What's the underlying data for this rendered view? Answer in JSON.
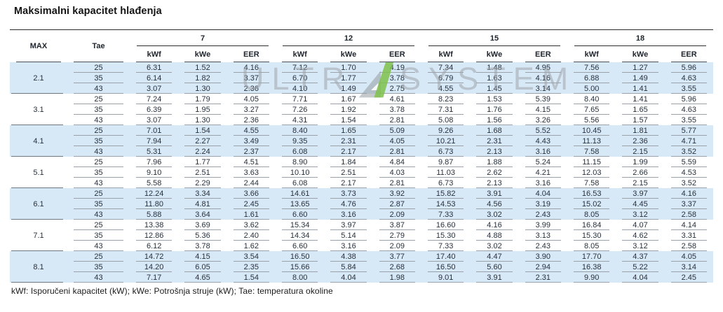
{
  "title": "Maksimalni kapacitet hlađenja",
  "footer_note": "kWf: Isporučeni kapacitet (kW); kWe: Potrošnja struje (kW); Tae: temperatura okoline",
  "watermark": {
    "left": "ULTR",
    "right": "SYSTEM"
  },
  "colors": {
    "row_shade": "#d7e8f6",
    "watermark_gray": "#9ea4ab",
    "watermark_green": "#7ec14b"
  },
  "table": {
    "col_max_header": "MAX",
    "col_tae_header": "Tae",
    "groups": [
      "7",
      "12",
      "15",
      "18"
    ],
    "sub_headers": [
      "kWf",
      "kWe",
      "EER"
    ],
    "row_groups": [
      {
        "max": "2.1",
        "shaded": true,
        "rows": [
          {
            "tae": "25",
            "values": [
              "6.31",
              "1.52",
              "4.16",
              "7.12",
              "1.70",
              "4.19",
              "7.34",
              "1.48",
              "4.95",
              "7.56",
              "1.27",
              "5.96"
            ]
          },
          {
            "tae": "35",
            "values": [
              "6.14",
              "1.82",
              "3.37",
              "6.70",
              "1.77",
              "3.78",
              "6.79",
              "1.63",
              "4.16",
              "6.88",
              "1.49",
              "4.63"
            ]
          },
          {
            "tae": "43",
            "values": [
              "3.07",
              "1.30",
              "2.36",
              "4.10",
              "1.49",
              "2.75",
              "4.55",
              "1.45",
              "3.14",
              "5.00",
              "1.41",
              "3.55"
            ]
          }
        ]
      },
      {
        "max": "3.1",
        "shaded": false,
        "rows": [
          {
            "tae": "25",
            "values": [
              "7.24",
              "1.79",
              "4.05",
              "7.71",
              "1.67",
              "4.61",
              "8.23",
              "1.53",
              "5.39",
              "8.40",
              "1.41",
              "5.96"
            ]
          },
          {
            "tae": "35",
            "values": [
              "6.39",
              "1.95",
              "3.27",
              "7.26",
              "1.92",
              "3.78",
              "7.31",
              "1.76",
              "4.15",
              "7.65",
              "1.65",
              "4.63"
            ]
          },
          {
            "tae": "43",
            "values": [
              "3.07",
              "1.30",
              "2.36",
              "4.31",
              "1.54",
              "2.81",
              "5.08",
              "1.56",
              "3.26",
              "5.56",
              "1.57",
              "3.55"
            ]
          }
        ]
      },
      {
        "max": "4.1",
        "shaded": true,
        "rows": [
          {
            "tae": "25",
            "values": [
              "7.01",
              "1.54",
              "4.55",
              "8.40",
              "1.65",
              "5.09",
              "9.26",
              "1.68",
              "5.52",
              "10.45",
              "1.81",
              "5.77"
            ]
          },
          {
            "tae": "35",
            "values": [
              "7.94",
              "2.27",
              "3.49",
              "9.35",
              "2.31",
              "4.05",
              "10.21",
              "2.31",
              "4.43",
              "11.13",
              "2.36",
              "4.71"
            ]
          },
          {
            "tae": "43",
            "values": [
              "5.31",
              "2.24",
              "2.37",
              "6.08",
              "2.17",
              "2.81",
              "6.73",
              "2.13",
              "3.16",
              "7.58",
              "2.15",
              "3.52"
            ]
          }
        ]
      },
      {
        "max": "5.1",
        "shaded": false,
        "rows": [
          {
            "tae": "25",
            "values": [
              "7.96",
              "1.77",
              "4.51",
              "8.90",
              "1.84",
              "4.84",
              "9.87",
              "1.88",
              "5.24",
              "11.15",
              "1.99",
              "5.59"
            ]
          },
          {
            "tae": "35",
            "values": [
              "9.10",
              "2.51",
              "3.63",
              "10.10",
              "2.51",
              "4.03",
              "11.03",
              "2.62",
              "4.21",
              "12.03",
              "2.66",
              "4.53"
            ]
          },
          {
            "tae": "43",
            "values": [
              "5.58",
              "2.29",
              "2.44",
              "6.08",
              "2.17",
              "2.81",
              "6.73",
              "2.13",
              "3.16",
              "7.58",
              "2.15",
              "3.52"
            ]
          }
        ]
      },
      {
        "max": "6.1",
        "shaded": true,
        "rows": [
          {
            "tae": "25",
            "values": [
              "12.24",
              "3.34",
              "3.66",
              "14.61",
              "3.73",
              "3.92",
              "15.82",
              "3.91",
              "4.04",
              "16.53",
              "3.97",
              "4.16"
            ]
          },
          {
            "tae": "35",
            "values": [
              "11.80",
              "4.81",
              "2.45",
              "13.65",
              "4.76",
              "2.87",
              "14.53",
              "4.56",
              "3.19",
              "15.02",
              "4.45",
              "3.37"
            ]
          },
          {
            "tae": "43",
            "values": [
              "5.88",
              "3.64",
              "1.61",
              "6.60",
              "3.16",
              "2.09",
              "7.33",
              "3.02",
              "2.43",
              "8.05",
              "3.12",
              "2.58"
            ]
          }
        ]
      },
      {
        "max": "7.1",
        "shaded": false,
        "rows": [
          {
            "tae": "25",
            "values": [
              "13.38",
              "3.69",
              "3.62",
              "15.34",
              "3.97",
              "3.87",
              "16.60",
              "4.16",
              "3.99",
              "16.84",
              "4.07",
              "4.14"
            ]
          },
          {
            "tae": "35",
            "values": [
              "12.86",
              "5.36",
              "2.40",
              "14.34",
              "5.14",
              "2.79",
              "15.30",
              "4.88",
              "3.13",
              "15.30",
              "4.62",
              "3.31"
            ]
          },
          {
            "tae": "43",
            "values": [
              "6.12",
              "3.78",
              "1.62",
              "6.60",
              "3.16",
              "2.09",
              "7.33",
              "3.02",
              "2.43",
              "8.05",
              "3.12",
              "2.58"
            ]
          }
        ]
      },
      {
        "max": "8.1",
        "shaded": true,
        "rows": [
          {
            "tae": "25",
            "values": [
              "14.72",
              "4.15",
              "3.54",
              "16.50",
              "4.38",
              "3.77",
              "17.40",
              "4.47",
              "3.90",
              "17.70",
              "4.37",
              "4.05"
            ]
          },
          {
            "tae": "35",
            "values": [
              "14.20",
              "6.05",
              "2.35",
              "15.66",
              "5.84",
              "2.68",
              "16.50",
              "5.60",
              "2.94",
              "16.38",
              "5.22",
              "3.14"
            ]
          },
          {
            "tae": "43",
            "values": [
              "7.17",
              "4.65",
              "1.54",
              "8.00",
              "4.04",
              "1.98",
              "9.01",
              "3.91",
              "2.31",
              "9.90",
              "4.04",
              "2.45"
            ]
          }
        ]
      }
    ]
  }
}
